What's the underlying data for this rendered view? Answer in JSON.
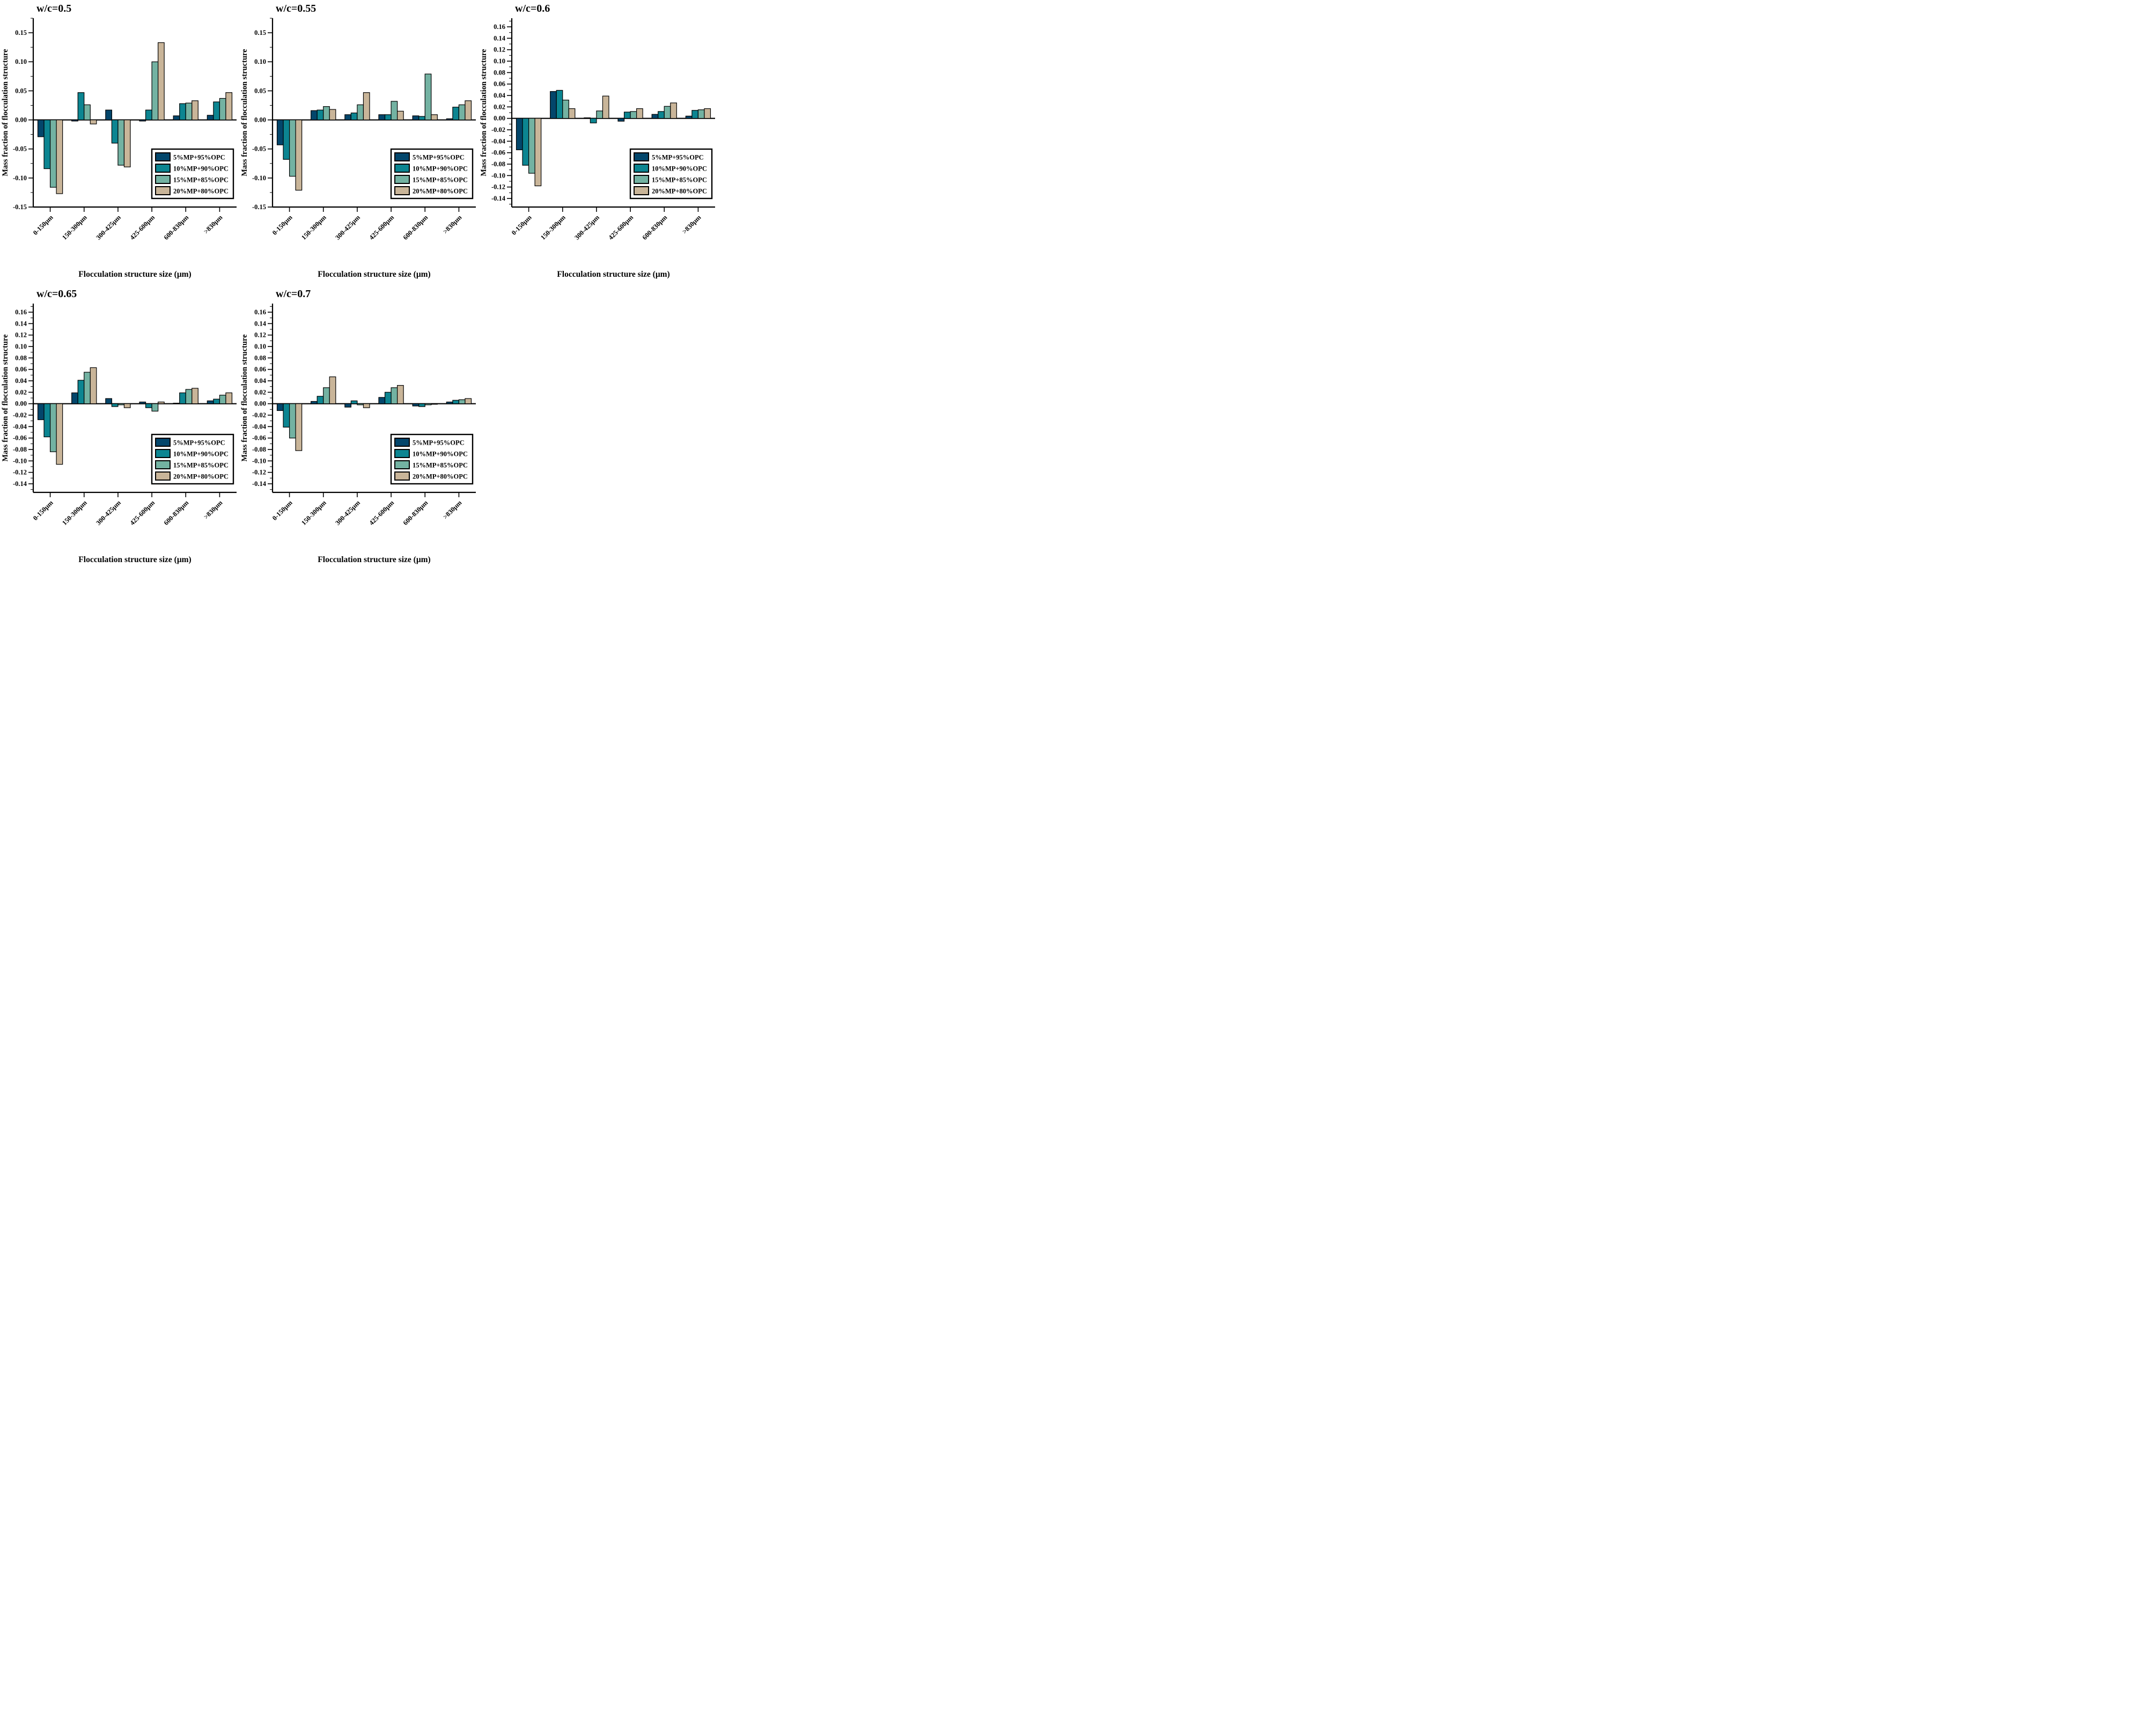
{
  "page": {
    "background": "#ffffff"
  },
  "legend": {
    "labels": [
      "5%MP+95%OPC",
      "10%MP+90%OPC",
      "15%MP+85%OPC",
      "20%MP+80%OPC"
    ]
  },
  "series_colors": [
    "#03466b",
    "#0c8591",
    "#73b2a2",
    "#c9b599"
  ],
  "chart_data": [
    {
      "type": "bar",
      "title": "w/c=0.5",
      "xlabel": "Flocculation structure size (μm)",
      "ylabel": "Mass fraction of flocculation structure",
      "categories": [
        "0-150μm",
        "150-300μm",
        "300-425μm",
        "425-600μm",
        "600-830μm",
        ">830μm"
      ],
      "series": [
        {
          "name": "5%MP+95%OPC",
          "values": [
            -0.029,
            -0.002,
            0.017,
            -0.002,
            0.007,
            0.008
          ]
        },
        {
          "name": "10%MP+90%OPC",
          "values": [
            -0.084,
            0.047,
            -0.04,
            0.017,
            0.028,
            0.031
          ]
        },
        {
          "name": "15%MP+85%OPC",
          "values": [
            -0.116,
            0.026,
            -0.078,
            0.1,
            0.029,
            0.037
          ]
        },
        {
          "name": "20%MP+80%OPC",
          "values": [
            -0.127,
            -0.007,
            -0.081,
            0.133,
            0.033,
            0.047
          ]
        }
      ],
      "ylim": [
        -0.15,
        0.175
      ],
      "yticks": [
        0.15,
        0.1,
        0.05,
        0.0,
        -0.05,
        -0.1,
        -0.15
      ],
      "ytick_labels": [
        "0.15",
        "0.10",
        "0.05",
        "0.00",
        "-0.05",
        "-0.10",
        "-0.15"
      ],
      "minor_step": 0.025,
      "grid": false,
      "legend_position": "lower right"
    },
    {
      "type": "bar",
      "title": "w/c=0.55",
      "xlabel": "Flocculation structure size (μm)",
      "ylabel": "Mass fraction of flocculation structure",
      "categories": [
        "0-150μm",
        "150-300μm",
        "300-425μm",
        "425-600μm",
        "600-830μm",
        ">830μm"
      ],
      "series": [
        {
          "name": "5%MP+95%OPC",
          "values": [
            -0.043,
            0.016,
            0.009,
            0.009,
            0.007,
            0.002
          ]
        },
        {
          "name": "10%MP+90%OPC",
          "values": [
            -0.068,
            0.017,
            0.012,
            0.009,
            0.006,
            0.022
          ]
        },
        {
          "name": "15%MP+85%OPC",
          "values": [
            -0.097,
            0.023,
            0.026,
            0.032,
            0.079,
            0.026
          ]
        },
        {
          "name": "20%MP+80%OPC",
          "values": [
            -0.121,
            0.018,
            0.047,
            0.015,
            0.009,
            0.033
          ]
        }
      ],
      "ylim": [
        -0.15,
        0.175
      ],
      "yticks": [
        0.15,
        0.1,
        0.05,
        0.0,
        -0.05,
        -0.1,
        -0.15
      ],
      "ytick_labels": [
        "0.15",
        "0.10",
        "0.05",
        "0.00",
        "-0.05",
        "-0.10",
        "-0.15"
      ],
      "minor_step": 0.025,
      "grid": false,
      "legend_position": "lower right"
    },
    {
      "type": "bar",
      "title": "w/c=0.6",
      "xlabel": "Flocculation structure size (μm)",
      "ylabel": "Mass fraction of flocculation structure",
      "categories": [
        "0-150μm",
        "150-300μm",
        "300-425μm",
        "425-600μm",
        "600-830μm",
        ">830μm"
      ],
      "series": [
        {
          "name": "5%MP+95%OPC",
          "values": [
            -0.055,
            0.047,
            0.001,
            -0.005,
            0.007,
            0.004
          ]
        },
        {
          "name": "10%MP+90%OPC",
          "values": [
            -0.082,
            0.049,
            -0.008,
            0.011,
            0.012,
            0.014
          ]
        },
        {
          "name": "15%MP+85%OPC",
          "values": [
            -0.096,
            0.032,
            0.013,
            0.012,
            0.021,
            0.015
          ]
        },
        {
          "name": "20%MP+80%OPC",
          "values": [
            -0.118,
            0.017,
            0.039,
            0.017,
            0.027,
            0.017
          ]
        }
      ],
      "ylim": [
        -0.155,
        0.175
      ],
      "yticks": [
        0.16,
        0.14,
        0.12,
        0.1,
        0.08,
        0.06,
        0.04,
        0.02,
        0.0,
        -0.02,
        -0.04,
        -0.06,
        -0.08,
        -0.1,
        -0.12,
        -0.14
      ],
      "ytick_labels": [
        "0.16",
        "0.14",
        "0.12",
        "0.10",
        "0.08",
        "0.06",
        "0.04",
        "0.02",
        "0.00",
        "-0.02",
        "-0.04",
        "-0.06",
        "-0.08",
        "-0.10",
        "-0.12",
        "-0.14"
      ],
      "minor_step": 0.01,
      "grid": false,
      "legend_position": "lower right"
    },
    {
      "type": "bar",
      "title": "w/c=0.65",
      "xlabel": "Flocculation structure size (μm)",
      "ylabel": "Mass fraction of flocculation structure",
      "categories": [
        "0-150μm",
        "150-300μm",
        "300-425μm",
        "425-600μm",
        "600-830μm",
        ">830μm"
      ],
      "series": [
        {
          "name": "5%MP+95%OPC",
          "values": [
            -0.028,
            0.019,
            0.009,
            0.003,
            0.001,
            0.005
          ]
        },
        {
          "name": "10%MP+90%OPC",
          "values": [
            -0.058,
            0.041,
            -0.005,
            -0.007,
            0.019,
            0.008
          ]
        },
        {
          "name": "15%MP+85%OPC",
          "values": [
            -0.084,
            0.055,
            -0.002,
            -0.013,
            0.025,
            0.015
          ]
        },
        {
          "name": "20%MP+80%OPC",
          "values": [
            -0.106,
            0.063,
            -0.007,
            0.003,
            0.027,
            0.019
          ]
        }
      ],
      "ylim": [
        -0.155,
        0.175
      ],
      "yticks": [
        0.16,
        0.14,
        0.12,
        0.1,
        0.08,
        0.06,
        0.04,
        0.02,
        0.0,
        -0.02,
        -0.04,
        -0.06,
        -0.08,
        -0.1,
        -0.12,
        -0.14
      ],
      "ytick_labels": [
        "0.16",
        "0.14",
        "0.12",
        "0.10",
        "0.08",
        "0.06",
        "0.04",
        "0.02",
        "0.00",
        "-0.02",
        "-0.04",
        "-0.06",
        "-0.08",
        "-0.10",
        "-0.12",
        "-0.14"
      ],
      "minor_step": 0.01,
      "grid": false,
      "legend_position": "lower right"
    },
    {
      "type": "bar",
      "title": "w/c=0.7",
      "xlabel": "Flocculation structure size (μm)",
      "ylabel": "Mass fraction of flocculation structure",
      "categories": [
        "0-150μm",
        "150-300μm",
        "300-425μm",
        "425-600μm",
        "600-830μm",
        ">830μm"
      ],
      "series": [
        {
          "name": "5%MP+95%OPC",
          "values": [
            -0.012,
            0.004,
            -0.006,
            0.011,
            -0.004,
            0.003
          ]
        },
        {
          "name": "10%MP+90%OPC",
          "values": [
            -0.041,
            0.013,
            0.005,
            0.02,
            -0.005,
            0.006
          ]
        },
        {
          "name": "15%MP+85%OPC",
          "values": [
            -0.06,
            0.028,
            -0.002,
            0.028,
            -0.002,
            0.007
          ]
        },
        {
          "name": "20%MP+80%OPC",
          "values": [
            -0.082,
            0.047,
            -0.007,
            0.032,
            -0.001,
            0.009
          ]
        }
      ],
      "ylim": [
        -0.155,
        0.175
      ],
      "yticks": [
        0.16,
        0.14,
        0.12,
        0.1,
        0.08,
        0.06,
        0.04,
        0.02,
        0.0,
        -0.02,
        -0.04,
        -0.06,
        -0.08,
        -0.1,
        -0.12,
        -0.14
      ],
      "ytick_labels": [
        "0.16",
        "0.14",
        "0.12",
        "0.10",
        "0.08",
        "0.06",
        "0.04",
        "0.02",
        "0.00",
        "-0.02",
        "-0.04",
        "-0.06",
        "-0.08",
        "-0.10",
        "-0.12",
        "-0.14"
      ],
      "minor_step": 0.01,
      "grid": false,
      "legend_position": "lower right"
    }
  ]
}
